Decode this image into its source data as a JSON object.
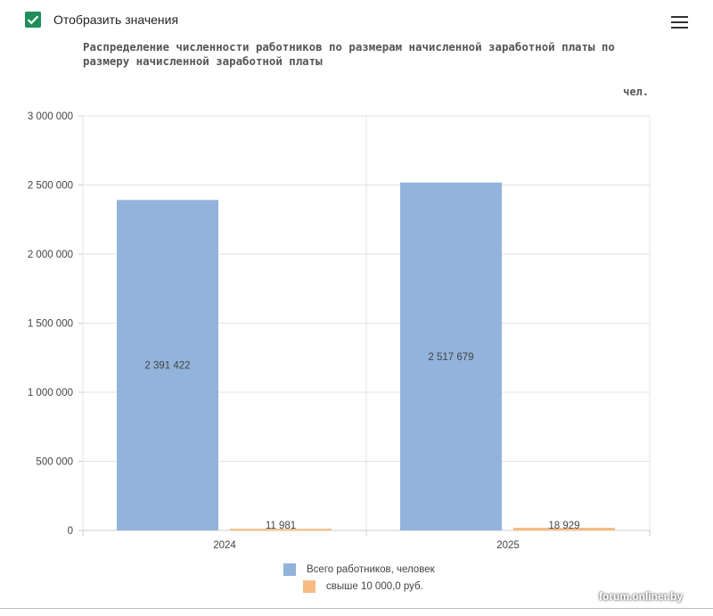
{
  "toggle": {
    "label": "Отобразить значения",
    "checked": true
  },
  "menu": {
    "icon": "hamburger-menu-icon"
  },
  "chart_data": {
    "type": "bar",
    "title": "Распределение численности работников по размерам начисленной заработной платы по размеру начисленной заработной платы",
    "unit": "чел.",
    "categories": [
      "2024",
      "2025"
    ],
    "series": [
      {
        "name": "Всего работников, человек",
        "values": [
          2391422,
          2517679
        ],
        "labels": [
          "2 391 422",
          "2 517 679"
        ],
        "color": "#92b3db"
      },
      {
        "name": "свыше 10 000,0 руб.",
        "values": [
          11981,
          18929
        ],
        "labels": [
          "11 981",
          "18 929"
        ],
        "color": "#f6bb83"
      }
    ],
    "ylim": [
      0,
      3000000
    ],
    "yticks": [
      0,
      500000,
      1000000,
      1500000,
      2000000,
      2500000,
      3000000
    ],
    "ytick_labels": [
      "0",
      "500 000",
      "1 000 000",
      "1 500 000",
      "2 000 000",
      "2 500 000",
      "3 000 000"
    ],
    "grid": true,
    "legend_position": "bottom-center"
  },
  "watermark": "forum.onliner.by"
}
